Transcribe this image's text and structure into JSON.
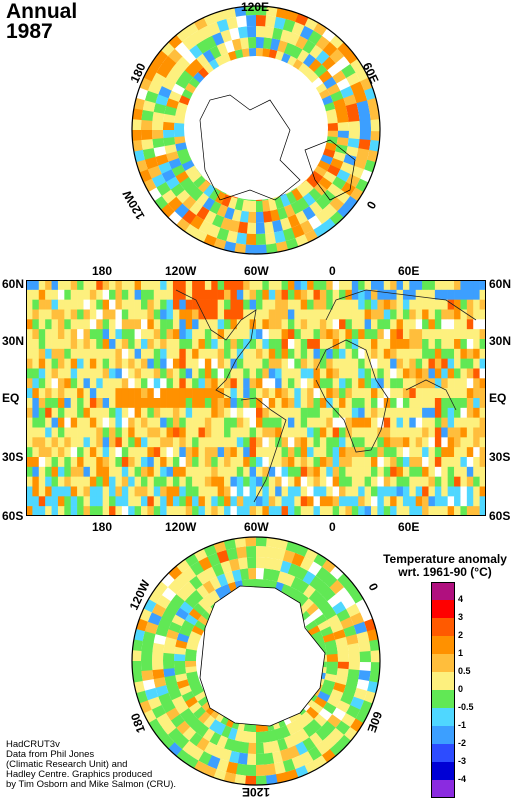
{
  "header": {
    "period": "Annual",
    "year": "1987"
  },
  "north_map": {
    "lon_labels": [
      "120E",
      "60E",
      "0",
      "120W",
      "180"
    ]
  },
  "world_map": {
    "lat_labels": [
      "60N",
      "30N",
      "EQ",
      "30S",
      "60S"
    ],
    "lon_labels": [
      "180",
      "120W",
      "60W",
      "0",
      "60E"
    ]
  },
  "south_map": {
    "lon_labels": [
      "120W",
      "0",
      "60E",
      "180",
      "120E"
    ]
  },
  "legend": {
    "title_line1": "Temperature anomaly",
    "title_line2": "wrt. 1961-90  (°C)",
    "labels": [
      "4",
      "3",
      "2",
      "1",
      "0.5",
      "0",
      "-0.5",
      "-1",
      "-2",
      "-3",
      "-4"
    ],
    "colors": [
      "#b0107f",
      "#ff0000",
      "#ff5a00",
      "#ff9100",
      "#ffbe3c",
      "#fdf07e",
      "#61e855",
      "#4fd7ff",
      "#3c9fff",
      "#2d4cff",
      "#0000d5",
      "#8b2be0"
    ]
  },
  "credits": {
    "line1": "HadCRUT3v",
    "line2": "Data from Phil Jones",
    "line3": "(Climatic Research Unit) and",
    "line4": "Hadley Centre.  Graphics produced",
    "line5": "by Tim Osborn and Mike Salmon (CRU)."
  }
}
